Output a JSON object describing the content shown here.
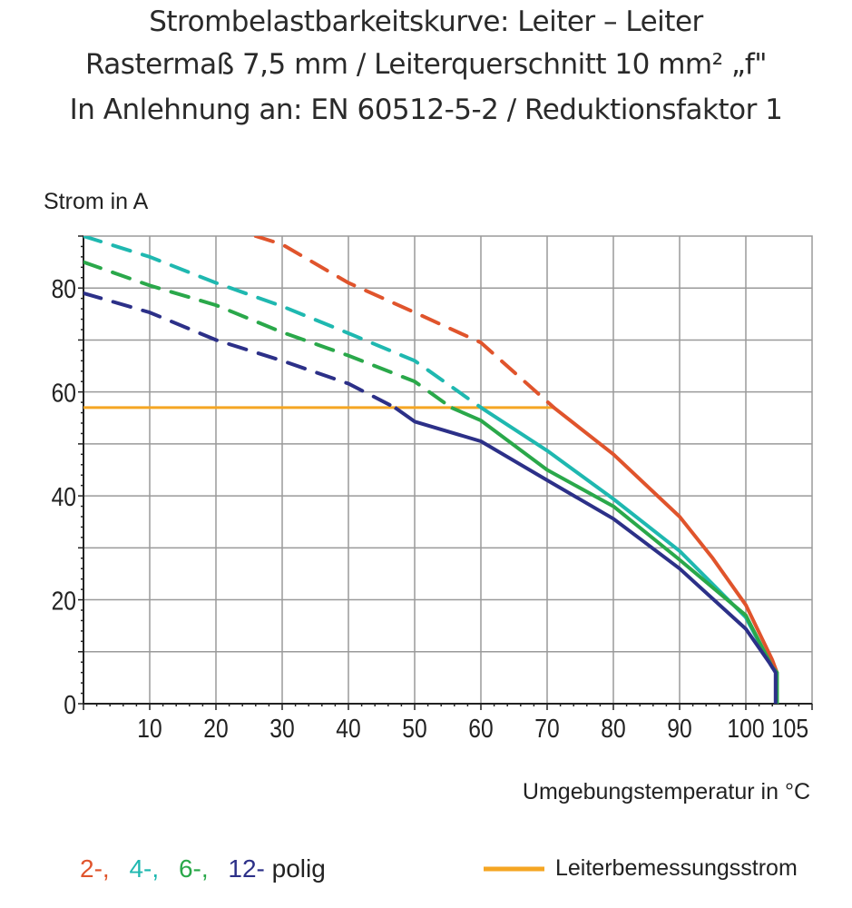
{
  "titles": [
    "Strombelastbarkeitskurve: Leiter – Leiter",
    "Rastermaß 7,5 mm / Leiterquerschnitt 10 mm² „f\"",
    "In Anlehnung an: EN 60512-5-2 / Reduktionsfaktor 1"
  ],
  "chart_data": {
    "type": "line",
    "ylabel": "Strom in A",
    "xlabel": "Umgebungstemperatur in °C",
    "xlim": [
      0,
      110
    ],
    "ylim": [
      0,
      90
    ],
    "x_ticks": [
      10,
      20,
      30,
      40,
      50,
      60,
      70,
      80,
      90,
      100,
      105
    ],
    "y_ticks": [
      0,
      20,
      40,
      60,
      80
    ],
    "grid": true,
    "rated_current": {
      "name": "Leiterbemessungsstrom",
      "value": 57,
      "x_range": [
        0,
        71
      ],
      "color": "#f5a623"
    },
    "series": [
      {
        "name": "2-,",
        "color": "#e0542c",
        "x": [
          26,
          30,
          40,
          50,
          60,
          71,
          80,
          90,
          95,
          100,
          104,
          104.7,
          104.7
        ],
        "y": [
          90,
          88.4,
          81,
          75.3,
          69.5,
          57,
          48,
          36,
          28,
          19,
          8.4,
          6,
          0
        ]
      },
      {
        "name": "4-,",
        "color": "#1fb8b0",
        "x": [
          0,
          10,
          20,
          30,
          40,
          50,
          60,
          70,
          80,
          90,
          100,
          104,
          104.7,
          104.7
        ],
        "y": [
          90,
          86,
          81,
          76.5,
          71.3,
          66,
          57,
          48.7,
          39.4,
          29.4,
          16.6,
          7,
          6,
          0
        ]
      },
      {
        "name": "6-,",
        "color": "#2aa84a",
        "x": [
          0,
          10,
          20,
          30,
          40,
          50,
          55.5,
          60,
          70,
          80,
          90,
          100,
          104,
          104.7,
          104.7
        ],
        "y": [
          85,
          80.5,
          76.7,
          71.5,
          67,
          62,
          57,
          54.5,
          45,
          38,
          27.7,
          17,
          7,
          6,
          0
        ]
      },
      {
        "name": "12-polig",
        "color": "#2c3088",
        "x": [
          0,
          10,
          20,
          30,
          40,
          47,
          50,
          60,
          70,
          80,
          90,
          100,
          103.5,
          104.5,
          104.5
        ],
        "y": [
          79,
          75.3,
          70,
          66,
          61.6,
          57,
          54.3,
          50.5,
          43,
          35.6,
          26,
          14.4,
          8,
          6,
          0
        ]
      }
    ],
    "legend": {
      "series_labels": [
        "2-,",
        "4-,",
        "6-,",
        "12-"
      ],
      "suffix": "polig",
      "rated_label": "Leiterbemessungsstrom",
      "placement": "bottom"
    }
  }
}
